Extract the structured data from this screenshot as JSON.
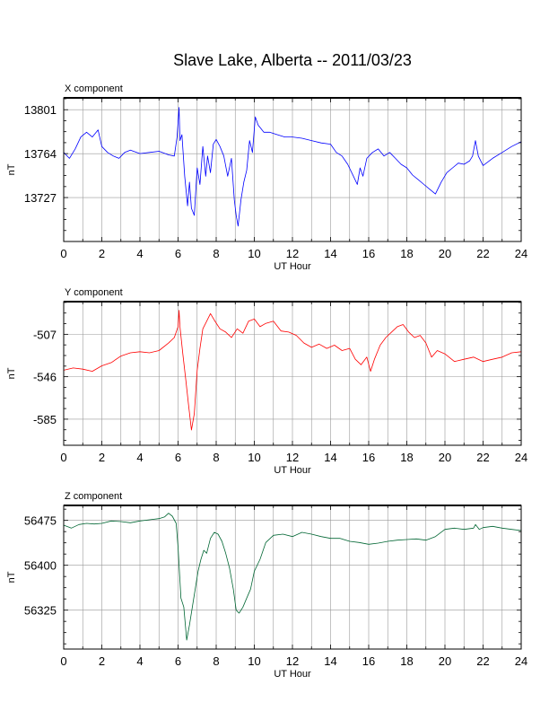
{
  "title": "Slave Lake, Alberta -- 2011/03/23",
  "colors": {
    "x": "#0000ff",
    "y": "#ff0000",
    "z": "#006633",
    "grid": "#999999"
  },
  "chart_data": [
    {
      "type": "line",
      "title": "X component",
      "xlabel": "UT Hour",
      "ylabel": "nT",
      "xlim": [
        0,
        24
      ],
      "ylim": [
        13690,
        13811
      ],
      "xticks": [
        0,
        2,
        4,
        6,
        8,
        10,
        12,
        14,
        16,
        18,
        20,
        22,
        24
      ],
      "yticks": [
        13727,
        13764,
        13801
      ],
      "grid": true,
      "color": "#0000ff",
      "series": [
        {
          "points": [
            [
              0,
              13765
            ],
            [
              0.3,
              13760
            ],
            [
              0.6,
              13768
            ],
            [
              0.9,
              13778
            ],
            [
              1.2,
              13782
            ],
            [
              1.5,
              13778
            ],
            [
              1.8,
              13784
            ],
            [
              2.0,
              13770
            ],
            [
              2.3,
              13765
            ],
            [
              2.6,
              13762
            ],
            [
              2.9,
              13760
            ],
            [
              3.2,
              13765
            ],
            [
              3.5,
              13767
            ],
            [
              4.0,
              13764
            ],
            [
              4.5,
              13765
            ],
            [
              5.0,
              13766
            ],
            [
              5.5,
              13763
            ],
            [
              5.8,
              13762
            ],
            [
              5.95,
              13778
            ],
            [
              6.05,
              13803
            ],
            [
              6.1,
              13775
            ],
            [
              6.2,
              13780
            ],
            [
              6.35,
              13745
            ],
            [
              6.5,
              13720
            ],
            [
              6.6,
              13740
            ],
            [
              6.7,
              13718
            ],
            [
              6.85,
              13712
            ],
            [
              7.0,
              13752
            ],
            [
              7.15,
              13738
            ],
            [
              7.3,
              13770
            ],
            [
              7.45,
              13745
            ],
            [
              7.55,
              13762
            ],
            [
              7.7,
              13748
            ],
            [
              7.85,
              13772
            ],
            [
              8.0,
              13776
            ],
            [
              8.2,
              13770
            ],
            [
              8.4,
              13762
            ],
            [
              8.6,
              13745
            ],
            [
              8.8,
              13760
            ],
            [
              8.95,
              13725
            ],
            [
              9.05,
              13712
            ],
            [
              9.15,
              13703
            ],
            [
              9.3,
              13725
            ],
            [
              9.45,
              13740
            ],
            [
              9.6,
              13750
            ],
            [
              9.75,
              13775
            ],
            [
              9.9,
              13765
            ],
            [
              10.05,
              13795
            ],
            [
              10.2,
              13788
            ],
            [
              10.5,
              13782
            ],
            [
              10.8,
              13782
            ],
            [
              11.2,
              13780
            ],
            [
              11.6,
              13778
            ],
            [
              12.0,
              13778
            ],
            [
              12.5,
              13777
            ],
            [
              13.0,
              13775
            ],
            [
              13.5,
              13773
            ],
            [
              14.0,
              13772
            ],
            [
              14.3,
              13765
            ],
            [
              14.6,
              13762
            ],
            [
              14.9,
              13755
            ],
            [
              15.2,
              13745
            ],
            [
              15.4,
              13738
            ],
            [
              15.55,
              13752
            ],
            [
              15.7,
              13745
            ],
            [
              15.9,
              13760
            ],
            [
              16.2,
              13765
            ],
            [
              16.5,
              13768
            ],
            [
              16.8,
              13762
            ],
            [
              17.1,
              13765
            ],
            [
              17.4,
              13760
            ],
            [
              17.7,
              13755
            ],
            [
              18.0,
              13752
            ],
            [
              18.3,
              13746
            ],
            [
              18.6,
              13742
            ],
            [
              18.9,
              13738
            ],
            [
              19.2,
              13734
            ],
            [
              19.5,
              13730
            ],
            [
              19.8,
              13740
            ],
            [
              20.1,
              13748
            ],
            [
              20.4,
              13752
            ],
            [
              20.7,
              13756
            ],
            [
              21.0,
              13755
            ],
            [
              21.3,
              13758
            ],
            [
              21.45,
              13762
            ],
            [
              21.6,
              13775
            ],
            [
              21.75,
              13762
            ],
            [
              22.0,
              13754
            ],
            [
              22.5,
              13760
            ],
            [
              23.0,
              13765
            ],
            [
              23.5,
              13770
            ],
            [
              24,
              13774
            ]
          ]
        }
      ]
    },
    {
      "type": "line",
      "title": "Y component",
      "xlabel": "UT Hour",
      "ylabel": "nT",
      "xlim": [
        0,
        24
      ],
      "ylim": [
        -609,
        -477
      ],
      "xticks": [
        0,
        2,
        4,
        6,
        8,
        10,
        12,
        14,
        16,
        18,
        20,
        22,
        24
      ],
      "yticks": [
        -507,
        -546,
        -585
      ],
      "grid": true,
      "color": "#ff0000",
      "series": [
        {
          "points": [
            [
              0,
              -540
            ],
            [
              0.5,
              -538
            ],
            [
              1.0,
              -539
            ],
            [
              1.5,
              -541
            ],
            [
              2.0,
              -536
            ],
            [
              2.5,
              -533
            ],
            [
              3.0,
              -527
            ],
            [
              3.5,
              -524
            ],
            [
              4.0,
              -523
            ],
            [
              4.5,
              -524
            ],
            [
              5.0,
              -522
            ],
            [
              5.5,
              -515
            ],
            [
              5.8,
              -510
            ],
            [
              6.0,
              -500
            ],
            [
              6.05,
              -485
            ],
            [
              6.1,
              -500
            ],
            [
              6.25,
              -525
            ],
            [
              6.4,
              -548
            ],
            [
              6.55,
              -572
            ],
            [
              6.7,
              -595
            ],
            [
              6.85,
              -580
            ],
            [
              7.0,
              -540
            ],
            [
              7.15,
              -520
            ],
            [
              7.3,
              -502
            ],
            [
              7.5,
              -495
            ],
            [
              7.7,
              -488
            ],
            [
              7.9,
              -494
            ],
            [
              8.2,
              -502
            ],
            [
              8.5,
              -505
            ],
            [
              8.8,
              -510
            ],
            [
              9.1,
              -502
            ],
            [
              9.4,
              -506
            ],
            [
              9.7,
              -495
            ],
            [
              10.0,
              -493
            ],
            [
              10.3,
              -500
            ],
            [
              10.6,
              -497
            ],
            [
              11.0,
              -495
            ],
            [
              11.4,
              -504
            ],
            [
              11.8,
              -505
            ],
            [
              12.2,
              -508
            ],
            [
              12.6,
              -515
            ],
            [
              13.0,
              -519
            ],
            [
              13.4,
              -516
            ],
            [
              13.8,
              -520
            ],
            [
              14.2,
              -517
            ],
            [
              14.6,
              -522
            ],
            [
              15.0,
              -520
            ],
            [
              15.3,
              -530
            ],
            [
              15.6,
              -535
            ],
            [
              15.9,
              -528
            ],
            [
              16.1,
              -541
            ],
            [
              16.3,
              -530
            ],
            [
              16.6,
              -517
            ],
            [
              16.9,
              -510
            ],
            [
              17.2,
              -505
            ],
            [
              17.5,
              -500
            ],
            [
              17.8,
              -498
            ],
            [
              18.1,
              -505
            ],
            [
              18.4,
              -510
            ],
            [
              18.7,
              -508
            ],
            [
              19.0,
              -515
            ],
            [
              19.3,
              -528
            ],
            [
              19.6,
              -522
            ],
            [
              20.0,
              -525
            ],
            [
              20.5,
              -532
            ],
            [
              21.0,
              -530
            ],
            [
              21.5,
              -528
            ],
            [
              22.0,
              -532
            ],
            [
              22.5,
              -530
            ],
            [
              23.0,
              -528
            ],
            [
              23.5,
              -524
            ],
            [
              24,
              -523
            ]
          ]
        }
      ]
    },
    {
      "type": "line",
      "title": "Z component",
      "xlabel": "UT Hour",
      "ylabel": "nT",
      "xlim": [
        0,
        24
      ],
      "ylim": [
        56260,
        56500
      ],
      "xticks": [
        0,
        2,
        4,
        6,
        8,
        10,
        12,
        14,
        16,
        18,
        20,
        22,
        24
      ],
      "yticks": [
        56325,
        56400,
        56475
      ],
      "grid": true,
      "color": "#006633",
      "series": [
        {
          "points": [
            [
              0,
              56467
            ],
            [
              0.4,
              56462
            ],
            [
              0.8,
              56468
            ],
            [
              1.2,
              56470
            ],
            [
              1.6,
              56469
            ],
            [
              2.0,
              56470
            ],
            [
              2.5,
              56474
            ],
            [
              3.0,
              56473
            ],
            [
              3.5,
              56471
            ],
            [
              4.0,
              56474
            ],
            [
              4.5,
              56476
            ],
            [
              5.0,
              56478
            ],
            [
              5.3,
              56481
            ],
            [
              5.5,
              56487
            ],
            [
              5.7,
              56482
            ],
            [
              5.9,
              56470
            ],
            [
              6.0,
              56430
            ],
            [
              6.15,
              56345
            ],
            [
              6.3,
              56330
            ],
            [
              6.45,
              56275
            ],
            [
              6.6,
              56300
            ],
            [
              6.75,
              56330
            ],
            [
              6.9,
              56360
            ],
            [
              7.05,
              56390
            ],
            [
              7.2,
              56410
            ],
            [
              7.35,
              56425
            ],
            [
              7.5,
              56420
            ],
            [
              7.7,
              56445
            ],
            [
              7.9,
              56455
            ],
            [
              8.1,
              56452
            ],
            [
              8.3,
              56440
            ],
            [
              8.5,
              56420
            ],
            [
              8.7,
              56395
            ],
            [
              8.9,
              56360
            ],
            [
              9.05,
              56325
            ],
            [
              9.2,
              56320
            ],
            [
              9.4,
              56330
            ],
            [
              9.6,
              56345
            ],
            [
              9.8,
              56360
            ],
            [
              10.0,
              56390
            ],
            [
              10.3,
              56410
            ],
            [
              10.6,
              56438
            ],
            [
              11.0,
              56450
            ],
            [
              11.5,
              56452
            ],
            [
              12.0,
              56448
            ],
            [
              12.5,
              56455
            ],
            [
              13.0,
              56452
            ],
            [
              13.5,
              56448
            ],
            [
              14.0,
              56445
            ],
            [
              14.5,
              56445
            ],
            [
              15.0,
              56440
            ],
            [
              15.5,
              56438
            ],
            [
              16.0,
              56435
            ],
            [
              16.5,
              56437
            ],
            [
              17.0,
              56440
            ],
            [
              17.5,
              56442
            ],
            [
              18.0,
              56443
            ],
            [
              18.5,
              56444
            ],
            [
              19.0,
              56442
            ],
            [
              19.5,
              56448
            ],
            [
              20.0,
              56460
            ],
            [
              20.5,
              56462
            ],
            [
              21.0,
              56460
            ],
            [
              21.5,
              56462
            ],
            [
              21.6,
              56468
            ],
            [
              21.8,
              56460
            ],
            [
              22.0,
              56463
            ],
            [
              22.5,
              56465
            ],
            [
              23.0,
              56462
            ],
            [
              23.5,
              56460
            ],
            [
              24,
              56458
            ]
          ]
        }
      ]
    }
  ]
}
